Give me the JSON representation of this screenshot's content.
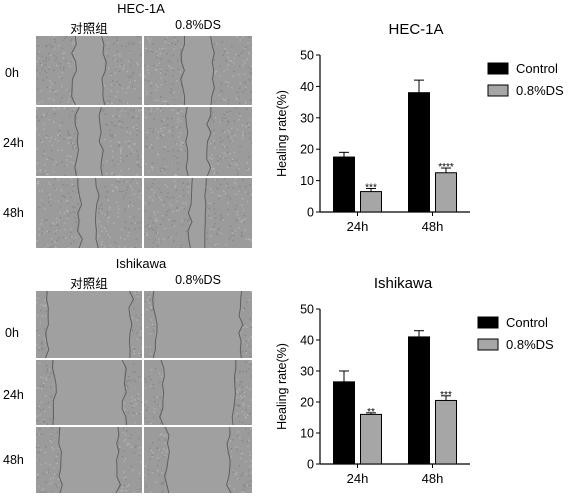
{
  "panels": [
    {
      "title": "HEC-1A",
      "columns": [
        "对照组",
        "0.8%DS"
      ],
      "rows": [
        "0h",
        "24h",
        "48h"
      ]
    },
    {
      "title": "Ishikawa",
      "columns": [
        "对照组",
        "0.8%DS"
      ],
      "rows": [
        "0h",
        "24h",
        "48h"
      ]
    }
  ],
  "colors": {
    "control": "#000000",
    "ds": "#a6a6a6",
    "micro_bg": "#9b9b9b"
  },
  "chart_data": [
    {
      "type": "bar",
      "title": "HEC-1A",
      "xlabel": "",
      "ylabel": "Healing rate(%)",
      "ylim": [
        0,
        50
      ],
      "yticks": [
        "0",
        "10",
        "20",
        "30",
        "40",
        "50"
      ],
      "categories": [
        "24h",
        "48h"
      ],
      "legend": "top-right",
      "series": [
        {
          "name": "Control",
          "values": [
            17.5,
            38
          ],
          "errors": [
            1.5,
            4
          ],
          "annotations": [
            "",
            ""
          ]
        },
        {
          "name": "0.8%DS",
          "values": [
            6.5,
            12.5
          ],
          "errors": [
            1,
            1.5
          ],
          "annotations": [
            "***",
            "****"
          ]
        }
      ]
    },
    {
      "type": "bar",
      "title": "Ishikawa",
      "xlabel": "",
      "ylabel": "Healing rate(%)",
      "ylim": [
        0,
        50
      ],
      "yticks": [
        "0",
        "10",
        "20",
        "30",
        "40",
        "50"
      ],
      "categories": [
        "24h",
        "48h"
      ],
      "legend": "top-right",
      "series": [
        {
          "name": "Control",
          "values": [
            26.5,
            41
          ],
          "errors": [
            3.5,
            2
          ],
          "annotations": [
            "",
            ""
          ]
        },
        {
          "name": "0.8%DS",
          "values": [
            16,
            20.5
          ],
          "errors": [
            0.5,
            1.5
          ],
          "annotations": [
            "**",
            "***"
          ]
        }
      ]
    }
  ]
}
